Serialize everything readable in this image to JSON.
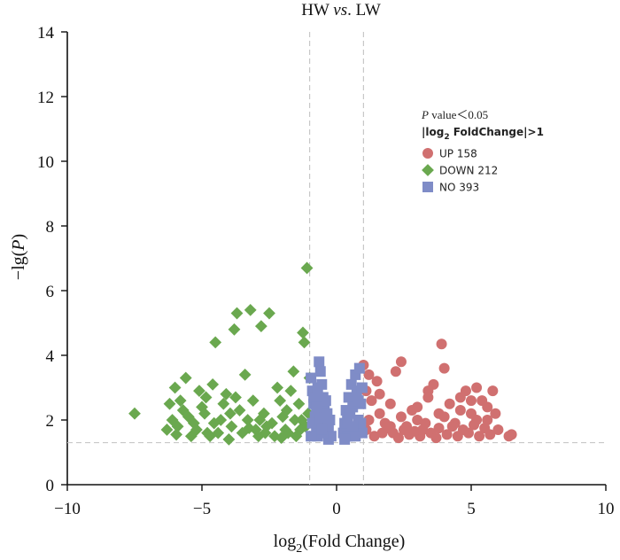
{
  "chart_data": {
    "type": "scatter",
    "title": "HW vs. LW",
    "title_parts": [
      "HW ",
      "vs",
      ". LW"
    ],
    "xlabel": "log2(Fold Change)",
    "xlabel_parts": [
      "log",
      "2",
      "(Fold Change)"
    ],
    "ylabel": "−lg(P)",
    "ylabel_parts": [
      "−lg(",
      "P",
      ")"
    ],
    "xlim": [
      -10,
      10
    ],
    "ylim": [
      0,
      14
    ],
    "x_ticks": [
      -10,
      -5,
      0,
      5,
      10
    ],
    "x_tick_labels": [
      "−10",
      "−5",
      "0",
      "5",
      "10"
    ],
    "y_ticks": [
      0,
      2,
      4,
      6,
      8,
      10,
      12,
      14
    ],
    "y_tick_labels": [
      "0",
      "2",
      "4",
      "6",
      "8",
      "10",
      "12",
      "14"
    ],
    "thresholds": {
      "fold_change_x": [
        -1,
        1
      ],
      "p_value_y": 1.3
    },
    "legend": {
      "position": "top-right",
      "header_line1_parts": [
        "P",
        " value＜0.05"
      ],
      "header_line2_parts": [
        "|log",
        "2",
        " FoldChange|>1"
      ],
      "entries": [
        {
          "label": "UP 158",
          "marker": "circle",
          "color": "#d07070"
        },
        {
          "label": "DOWN 212",
          "marker": "diamond",
          "color": "#6aa84f"
        },
        {
          "label": "NO 393",
          "marker": "square",
          "color": "#7f8cc7"
        }
      ]
    },
    "series": [
      {
        "name": "UP 158",
        "marker": "circle",
        "color": "#d07070",
        "points": [
          [
            1.0,
            3.7
          ],
          [
            1.2,
            3.4
          ],
          [
            1.5,
            3.2
          ],
          [
            1.1,
            2.9
          ],
          [
            1.3,
            2.6
          ],
          [
            1.6,
            2.2
          ],
          [
            1.8,
            1.9
          ],
          [
            2.0,
            2.5
          ],
          [
            2.2,
            3.5
          ],
          [
            2.1,
            1.6
          ],
          [
            2.4,
            2.1
          ],
          [
            2.6,
            1.8
          ],
          [
            2.8,
            2.3
          ],
          [
            3.0,
            2.0
          ],
          [
            3.2,
            1.7
          ],
          [
            3.4,
            2.7
          ],
          [
            3.6,
            3.1
          ],
          [
            3.9,
            4.35
          ],
          [
            3.8,
            2.2
          ],
          [
            4.0,
            3.6
          ],
          [
            4.2,
            2.5
          ],
          [
            4.4,
            1.9
          ],
          [
            4.6,
            2.7
          ],
          [
            4.8,
            2.9
          ],
          [
            5.0,
            2.2
          ],
          [
            5.2,
            3.0
          ],
          [
            5.4,
            2.6
          ],
          [
            5.6,
            2.0
          ],
          [
            5.8,
            2.9
          ],
          [
            6.0,
            1.7
          ],
          [
            6.4,
            1.5
          ],
          [
            6.5,
            1.55
          ],
          [
            1.4,
            1.5
          ],
          [
            1.7,
            1.6
          ],
          [
            2.3,
            1.45
          ],
          [
            2.7,
            1.55
          ],
          [
            3.1,
            1.5
          ],
          [
            3.5,
            1.6
          ],
          [
            3.7,
            1.45
          ],
          [
            4.1,
            1.55
          ],
          [
            4.5,
            1.5
          ],
          [
            4.9,
            1.6
          ],
          [
            5.3,
            1.5
          ],
          [
            5.7,
            1.55
          ],
          [
            1.9,
            1.75
          ],
          [
            2.5,
            1.7
          ],
          [
            2.9,
            1.65
          ],
          [
            3.3,
            1.9
          ],
          [
            4.3,
            1.8
          ],
          [
            4.7,
            1.7
          ],
          [
            5.1,
            1.85
          ],
          [
            5.5,
            1.75
          ],
          [
            5.9,
            2.2
          ],
          [
            1.2,
            2.0
          ],
          [
            1.6,
            2.8
          ],
          [
            2.0,
            1.8
          ],
          [
            3.0,
            2.4
          ],
          [
            4.0,
            2.1
          ],
          [
            5.0,
            2.6
          ],
          [
            5.6,
            2.4
          ],
          [
            2.4,
            3.8
          ],
          [
            3.4,
            2.9
          ],
          [
            4.6,
            2.3
          ],
          [
            1.1,
            1.7
          ],
          [
            3.8,
            1.75
          ],
          [
            5.2,
            2.0
          ]
        ]
      },
      {
        "name": "DOWN 212",
        "marker": "diamond",
        "color": "#6aa84f",
        "points": [
          [
            -7.5,
            2.2
          ],
          [
            -6.0,
            3.0
          ],
          [
            -5.8,
            2.6
          ],
          [
            -5.6,
            3.3
          ],
          [
            -5.5,
            2.1
          ],
          [
            -5.3,
            1.9
          ],
          [
            -5.1,
            2.9
          ],
          [
            -5.0,
            2.4
          ],
          [
            -4.8,
            1.6
          ],
          [
            -4.6,
            3.1
          ],
          [
            -4.5,
            4.4
          ],
          [
            -4.3,
            2.0
          ],
          [
            -4.1,
            2.8
          ],
          [
            -3.9,
            1.8
          ],
          [
            -3.8,
            4.8
          ],
          [
            -3.7,
            5.3
          ],
          [
            -3.6,
            2.3
          ],
          [
            -3.4,
            3.4
          ],
          [
            -3.2,
            5.4
          ],
          [
            -3.1,
            2.6
          ],
          [
            -3.0,
            1.7
          ],
          [
            -2.8,
            4.9
          ],
          [
            -2.7,
            2.2
          ],
          [
            -2.5,
            5.3
          ],
          [
            -2.4,
            1.9
          ],
          [
            -2.2,
            3.0
          ],
          [
            -2.0,
            2.1
          ],
          [
            -1.8,
            1.6
          ],
          [
            -1.6,
            3.5
          ],
          [
            -1.4,
            2.5
          ],
          [
            -1.25,
            4.7
          ],
          [
            -1.2,
            4.4
          ],
          [
            -1.1,
            6.7
          ],
          [
            -1.05,
            2.2
          ],
          [
            -1.0,
            3.3
          ],
          [
            -6.2,
            2.5
          ],
          [
            -5.9,
            1.8
          ],
          [
            -5.4,
            1.5
          ],
          [
            -5.2,
            1.7
          ],
          [
            -4.9,
            2.2
          ],
          [
            -4.7,
            1.5
          ],
          [
            -4.4,
            1.6
          ],
          [
            -4.2,
            2.5
          ],
          [
            -4.0,
            1.4
          ],
          [
            -3.5,
            1.6
          ],
          [
            -3.3,
            2.0
          ],
          [
            -2.9,
            1.5
          ],
          [
            -2.6,
            1.8
          ],
          [
            -2.3,
            1.5
          ],
          [
            -2.1,
            2.6
          ],
          [
            -1.9,
            1.7
          ],
          [
            -1.7,
            2.9
          ],
          [
            -1.5,
            1.5
          ],
          [
            -1.3,
            2.0
          ],
          [
            -1.15,
            1.8
          ],
          [
            -6.1,
            2.0
          ],
          [
            -5.7,
            2.3
          ],
          [
            -4.85,
            2.7
          ],
          [
            -3.95,
            2.2
          ],
          [
            -3.25,
            1.75
          ],
          [
            -2.65,
            1.6
          ],
          [
            -1.85,
            2.3
          ],
          [
            -1.55,
            2.0
          ],
          [
            -1.35,
            1.7
          ],
          [
            -6.3,
            1.7
          ],
          [
            -5.95,
            1.55
          ],
          [
            -4.55,
            1.9
          ],
          [
            -3.75,
            2.7
          ],
          [
            -2.85,
            2.0
          ],
          [
            -2.05,
            1.45
          ]
        ]
      },
      {
        "name": "NO 393",
        "marker": "square",
        "color": "#7f8cc7",
        "points": [
          [
            -0.95,
            3.3
          ],
          [
            -0.9,
            2.9
          ],
          [
            -0.85,
            2.5
          ],
          [
            -0.8,
            2.1
          ],
          [
            -0.75,
            1.8
          ],
          [
            -0.7,
            1.5
          ],
          [
            -0.65,
            3.8
          ],
          [
            -0.6,
            3.5
          ],
          [
            -0.55,
            3.1
          ],
          [
            -0.5,
            2.7
          ],
          [
            -0.45,
            2.3
          ],
          [
            -0.4,
            1.9
          ],
          [
            -0.35,
            1.6
          ],
          [
            -0.3,
            1.4
          ],
          [
            -0.25,
            2.0
          ],
          [
            -0.2,
            1.5
          ],
          [
            -0.95,
            1.5
          ],
          [
            -0.9,
            1.9
          ],
          [
            -0.85,
            2.7
          ],
          [
            -0.7,
            3.0
          ],
          [
            -0.6,
            2.0
          ],
          [
            -0.5,
            1.6
          ],
          [
            -0.4,
            2.6
          ],
          [
            -0.3,
            1.8
          ],
          [
            0.25,
            1.6
          ],
          [
            0.3,
            1.9
          ],
          [
            0.35,
            2.3
          ],
          [
            0.4,
            2.0
          ],
          [
            0.45,
            2.7
          ],
          [
            0.5,
            1.5
          ],
          [
            0.55,
            3.1
          ],
          [
            0.6,
            2.4
          ],
          [
            0.65,
            1.7
          ],
          [
            0.7,
            3.4
          ],
          [
            0.75,
            2.9
          ],
          [
            0.8,
            2.0
          ],
          [
            0.85,
            3.6
          ],
          [
            0.9,
            2.5
          ],
          [
            0.95,
            1.6
          ],
          [
            0.95,
            3.0
          ],
          [
            0.9,
            1.9
          ],
          [
            0.8,
            2.6
          ],
          [
            0.7,
            1.5
          ],
          [
            0.6,
            1.8
          ],
          [
            0.5,
            2.2
          ],
          [
            0.4,
            1.5
          ],
          [
            0.3,
            1.4
          ],
          [
            -0.75,
            2.4
          ],
          [
            -0.55,
            1.7
          ],
          [
            -0.35,
            2.2
          ]
        ]
      }
    ]
  }
}
